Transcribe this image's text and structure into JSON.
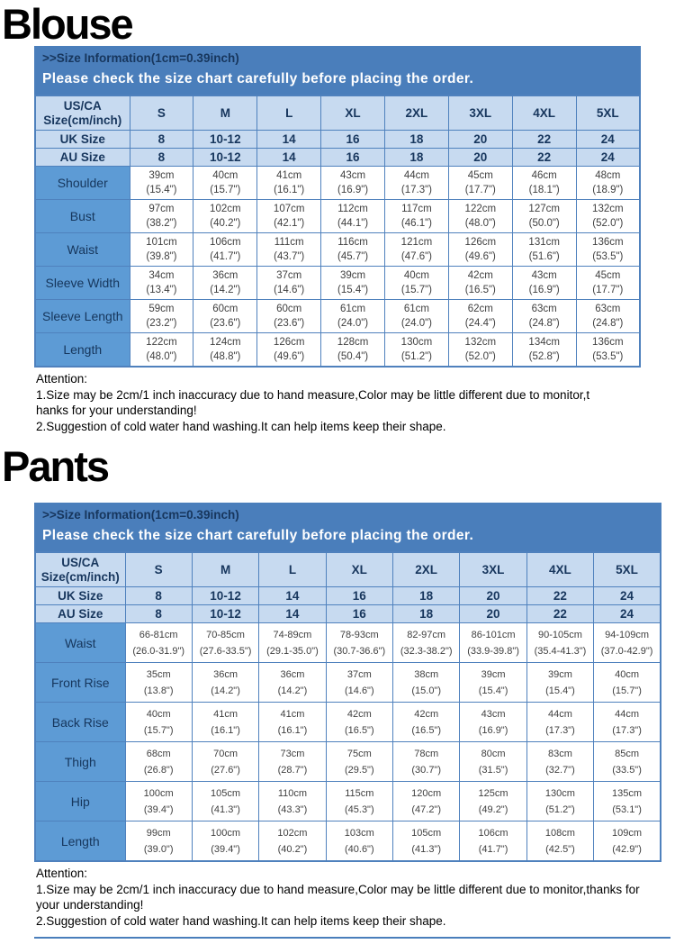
{
  "colors": {
    "banner_background": "#4A7EBB",
    "banner_info_text": "#17365D",
    "banner_warning_text": "#FFFFFF",
    "header_cell_background": "#C7DAF0",
    "label_cell_background": "#5D9BD5",
    "grid_border": "#4F81BD",
    "measurement_text": "#3F3F3F",
    "title_text": "#000000"
  },
  "sections": [
    {
      "title": "Blouse",
      "banner": {
        "info": ">>Size Information(1cm=0.39inch)",
        "warning": "Please check the size chart carefully before placing the order."
      },
      "table": {
        "corner": [
          "US/CA",
          "Size(cm/inch)"
        ],
        "sizes": [
          "S",
          "M",
          "L",
          "XL",
          "2XL",
          "3XL",
          "4XL",
          "5XL"
        ],
        "regional_rows": [
          {
            "label": "UK Size",
            "values": [
              "8",
              "10-12",
              "14",
              "16",
              "18",
              "20",
              "22",
              "24"
            ]
          },
          {
            "label": "AU Size",
            "values": [
              "8",
              "10-12",
              "14",
              "16",
              "18",
              "20",
              "22",
              "24"
            ]
          }
        ],
        "measure_rows": [
          {
            "label": "Shoulder",
            "cells": [
              [
                "39cm",
                "(15.4\")"
              ],
              [
                "40cm",
                "(15.7\")"
              ],
              [
                "41cm",
                "(16.1\")"
              ],
              [
                "43cm",
                "(16.9\")"
              ],
              [
                "44cm",
                "(17.3\")"
              ],
              [
                "45cm",
                "(17.7\")"
              ],
              [
                "46cm",
                "(18.1\")"
              ],
              [
                "48cm",
                "(18.9\")"
              ]
            ]
          },
          {
            "label": "Bust",
            "cells": [
              [
                "97cm",
                "(38.2\")"
              ],
              [
                "102cm",
                "(40.2\")"
              ],
              [
                "107cm",
                "(42.1\")"
              ],
              [
                "112cm",
                "(44.1\")"
              ],
              [
                "117cm",
                "(46.1\")"
              ],
              [
                "122cm",
                "(48.0\")"
              ],
              [
                "127cm",
                "(50.0\")"
              ],
              [
                "132cm",
                "(52.0\")"
              ]
            ]
          },
          {
            "label": "Waist",
            "cells": [
              [
                "101cm",
                "(39.8\")"
              ],
              [
                "106cm",
                "(41.7\")"
              ],
              [
                "111cm",
                "(43.7\")"
              ],
              [
                "116cm",
                "(45.7\")"
              ],
              [
                "121cm",
                "(47.6\")"
              ],
              [
                "126cm",
                "(49.6\")"
              ],
              [
                "131cm",
                "(51.6\")"
              ],
              [
                "136cm",
                "(53.5\")"
              ]
            ]
          },
          {
            "label": "Sleeve Width",
            "cells": [
              [
                "34cm",
                "(13.4\")"
              ],
              [
                "36cm",
                "(14.2\")"
              ],
              [
                "37cm",
                "(14.6\")"
              ],
              [
                "39cm",
                "(15.4\")"
              ],
              [
                "40cm",
                "(15.7\")"
              ],
              [
                "42cm",
                "(16.5\")"
              ],
              [
                "43cm",
                "(16.9\")"
              ],
              [
                "45cm",
                "(17.7\")"
              ]
            ]
          },
          {
            "label": "Sleeve Length",
            "cells": [
              [
                "59cm",
                "(23.2\")"
              ],
              [
                "60cm",
                "(23.6\")"
              ],
              [
                "60cm",
                "(23.6\")"
              ],
              [
                "61cm",
                "(24.0\")"
              ],
              [
                "61cm",
                "(24.0\")"
              ],
              [
                "62cm",
                "(24.4\")"
              ],
              [
                "63cm",
                "(24.8\")"
              ],
              [
                "63cm",
                "(24.8\")"
              ]
            ]
          },
          {
            "label": "Length",
            "cells": [
              [
                "122cm",
                "(48.0\")"
              ],
              [
                "124cm",
                "(48.8\")"
              ],
              [
                "126cm",
                "(49.6\")"
              ],
              [
                "128cm",
                "(50.4\")"
              ],
              [
                "130cm",
                "(51.2\")"
              ],
              [
                "132cm",
                "(52.0\")"
              ],
              [
                "134cm",
                "(52.8\")"
              ],
              [
                "136cm",
                "(53.5\")"
              ]
            ]
          }
        ]
      },
      "attention": {
        "heading": "Attention:",
        "line1": "1.Size may be 2cm/1 inch inaccuracy due to hand measure,Color may be little different due to monitor,t",
        "line2": "hanks for your understanding!",
        "line3": "2.Suggestion of cold water hand washing.It can help items keep their shape."
      }
    },
    {
      "title": "Pants",
      "banner": {
        "info": ">>Size Information(1cm=0.39inch)",
        "warning": "Please check the size chart carefully before placing the order."
      },
      "table": {
        "corner": [
          "US/CA",
          "Size(cm/inch)"
        ],
        "sizes": [
          "S",
          "M",
          "L",
          "XL",
          "2XL",
          "3XL",
          "4XL",
          "5XL"
        ],
        "regional_rows": [
          {
            "label": "UK Size",
            "values": [
              "8",
              "10-12",
              "14",
              "16",
              "18",
              "20",
              "22",
              "24"
            ]
          },
          {
            "label": "AU Size",
            "values": [
              "8",
              "10-12",
              "14",
              "16",
              "18",
              "20",
              "22",
              "24"
            ]
          }
        ],
        "measure_rows": [
          {
            "label": "Waist",
            "cells": [
              [
                "66-81cm",
                "(26.0-31.9\")"
              ],
              [
                "70-85cm",
                "(27.6-33.5\")"
              ],
              [
                "74-89cm",
                "(29.1-35.0\")"
              ],
              [
                "78-93cm",
                "(30.7-36.6\")"
              ],
              [
                "82-97cm",
                "(32.3-38.2\")"
              ],
              [
                "86-101cm",
                "(33.9-39.8\")"
              ],
              [
                "90-105cm",
                "(35.4-41.3\")"
              ],
              [
                "94-109cm",
                "(37.0-42.9\")"
              ]
            ]
          },
          {
            "label": "Front Rise",
            "cells": [
              [
                "35cm",
                "(13.8\")"
              ],
              [
                "36cm",
                "(14.2\")"
              ],
              [
                "36cm",
                "(14.2\")"
              ],
              [
                "37cm",
                "(14.6\")"
              ],
              [
                "38cm",
                "(15.0\")"
              ],
              [
                "39cm",
                "(15.4\")"
              ],
              [
                "39cm",
                "(15.4\")"
              ],
              [
                "40cm",
                "(15.7\")"
              ]
            ]
          },
          {
            "label": "Back Rise",
            "cells": [
              [
                "40cm",
                "(15.7\")"
              ],
              [
                "41cm",
                "(16.1\")"
              ],
              [
                "41cm",
                "(16.1\")"
              ],
              [
                "42cm",
                "(16.5\")"
              ],
              [
                "42cm",
                "(16.5\")"
              ],
              [
                "43cm",
                "(16.9\")"
              ],
              [
                "44cm",
                "(17.3\")"
              ],
              [
                "44cm",
                "(17.3\")"
              ]
            ]
          },
          {
            "label": "Thigh",
            "cells": [
              [
                "68cm",
                "(26.8\")"
              ],
              [
                "70cm",
                "(27.6\")"
              ],
              [
                "73cm",
                "(28.7\")"
              ],
              [
                "75cm",
                "(29.5\")"
              ],
              [
                "78cm",
                "(30.7\")"
              ],
              [
                "80cm",
                "(31.5\")"
              ],
              [
                "83cm",
                "(32.7\")"
              ],
              [
                "85cm",
                "(33.5\")"
              ]
            ]
          },
          {
            "label": "Hip",
            "cells": [
              [
                "100cm",
                "(39.4\")"
              ],
              [
                "105cm",
                "(41.3\")"
              ],
              [
                "110cm",
                "(43.3\")"
              ],
              [
                "115cm",
                "(45.3\")"
              ],
              [
                "120cm",
                "(47.2\")"
              ],
              [
                "125cm",
                "(49.2\")"
              ],
              [
                "130cm",
                "(51.2\")"
              ],
              [
                "135cm",
                "(53.1\")"
              ]
            ]
          },
          {
            "label": "Length",
            "cells": [
              [
                "99cm",
                "(39.0\")"
              ],
              [
                "100cm",
                "(39.4\")"
              ],
              [
                "102cm",
                "(40.2\")"
              ],
              [
                "103cm",
                "(40.6\")"
              ],
              [
                "105cm",
                "(41.3\")"
              ],
              [
                "106cm",
                "(41.7\")"
              ],
              [
                "108cm",
                "(42.5\")"
              ],
              [
                "109cm",
                "(42.9\")"
              ]
            ]
          }
        ]
      },
      "attention": {
        "heading": "Attention:",
        "line1": "1.Size may be 2cm/1 inch inaccuracy due to hand measure,Color may be little different due to monitor,thanks for",
        "line2": "your understanding!",
        "line3": "2.Suggestion of cold water hand washing.It can help items keep their shape."
      }
    }
  ]
}
